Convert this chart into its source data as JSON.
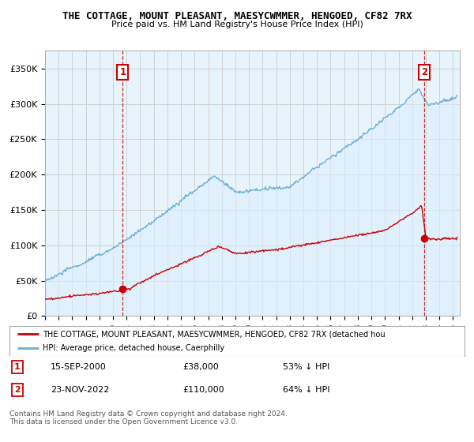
{
  "title": "THE COTTAGE, MOUNT PLEASANT, MAESYCWMMER, HENGOED, CF82 7RX",
  "subtitle": "Price paid vs. HM Land Registry's House Price Index (HPI)",
  "x_start_year": 1995.0,
  "x_end_year": 2025.5,
  "y_max": 375000,
  "y_ticks": [
    0,
    50000,
    100000,
    150000,
    200000,
    250000,
    300000,
    350000
  ],
  "y_tick_labels": [
    "£0",
    "£50K",
    "£100K",
    "£150K",
    "£200K",
    "£250K",
    "£300K",
    "£350K"
  ],
  "transaction1_date": 2000.71,
  "transaction1_price": 38000,
  "transaction1_label": "1",
  "transaction2_date": 2022.9,
  "transaction2_price": 110000,
  "transaction2_label": "2",
  "hpi_color": "#6baed6",
  "hpi_fill_color": "#ddeeff",
  "price_color": "#cc0000",
  "annotation_color": "#cc0000",
  "grid_color": "#cccccc",
  "chart_bg_color": "#e8f4fb",
  "background_color": "#ffffff",
  "legend_line1": "THE COTTAGE, MOUNT PLEASANT, MAESYCWMMER, HENGOED, CF82 7RX (detached hou",
  "legend_line2": "HPI: Average price, detached house, Caerphilly",
  "table_row1_num": "1",
  "table_row1_date": "15-SEP-2000",
  "table_row1_price": "£38,000",
  "table_row1_hpi": "53% ↓ HPI",
  "table_row2_num": "2",
  "table_row2_date": "23-NOV-2022",
  "table_row2_price": "£110,000",
  "table_row2_hpi": "64% ↓ HPI",
  "footer": "Contains HM Land Registry data © Crown copyright and database right 2024.\nThis data is licensed under the Open Government Licence v3.0."
}
